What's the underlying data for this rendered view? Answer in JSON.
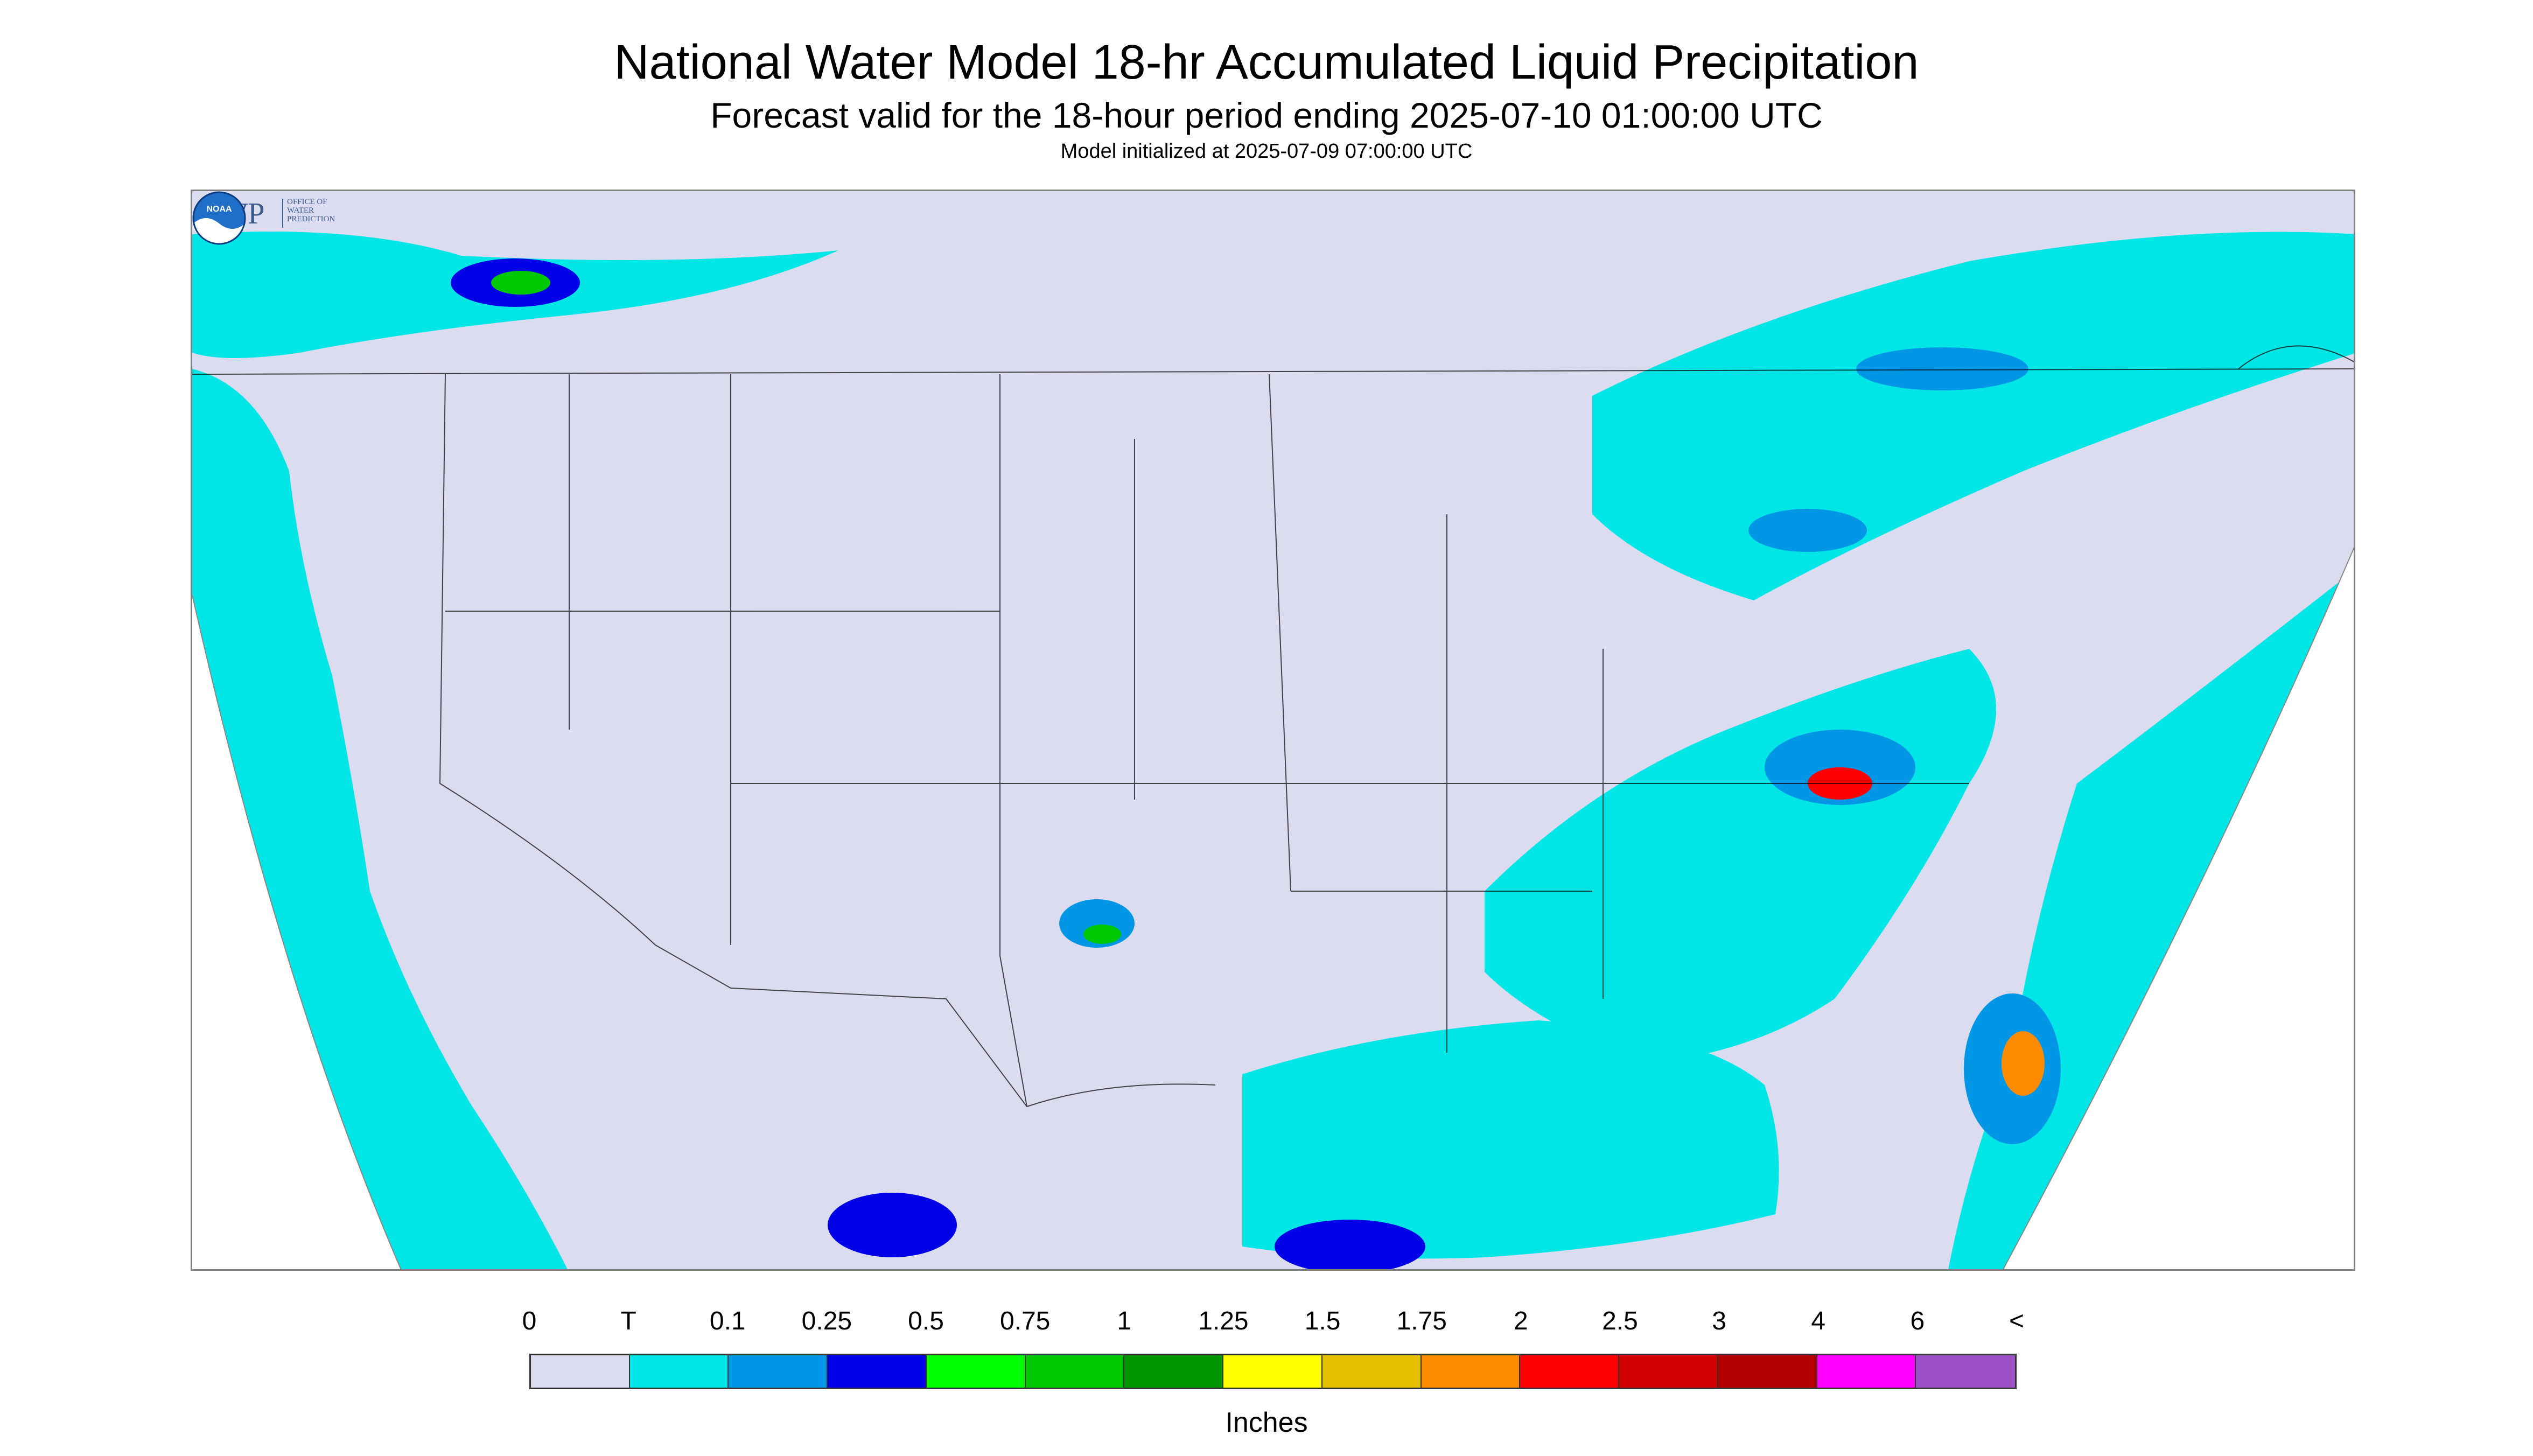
{
  "titles": {
    "main": "National Water Model 18-hr Accumulated Liquid Precipitation",
    "sub": "Forecast valid for the 18-hour period ending 2025-07-10 01:00:00 UTC",
    "init": "Model initialized at 2025-07-09 07:00:00 UTC"
  },
  "logos": {
    "owp": {
      "mark": "OWP",
      "text": "OFFICE OF WATER PREDICTION"
    },
    "noaa": {
      "text": "NOAA"
    }
  },
  "legend": {
    "labels": [
      "0",
      "T",
      "0.1",
      "0.25",
      "0.5",
      "0.75",
      "1",
      "1.25",
      "1.5",
      "1.75",
      "2",
      "2.5",
      "3",
      "4",
      "6",
      "<"
    ],
    "colors": [
      "#dcdcf0",
      "#00e6e6",
      "#0096e6",
      "#0000e6",
      "#00ff00",
      "#00c800",
      "#009600",
      "#ffff00",
      "#e6be00",
      "#ff8c00",
      "#ff0000",
      "#d20000",
      "#b40000",
      "#ff00ff",
      "#9b50c8"
    ],
    "units": "Inches"
  },
  "map": {
    "land_color": "#dcdcf0",
    "ocean_color": "#00e6e6"
  }
}
